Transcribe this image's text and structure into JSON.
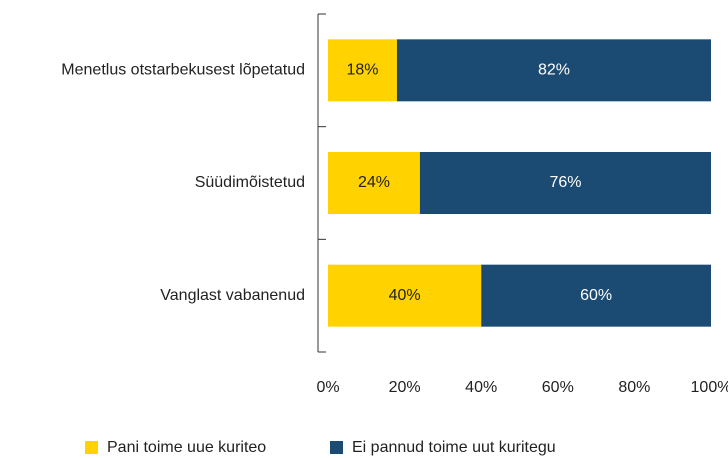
{
  "chart_data": {
    "type": "stacked_barh",
    "categories": [
      "Menetlus otstarbekusest lõpetatud",
      "Süüdimõistetud",
      "Vanglast vabanenud"
    ],
    "series": [
      {
        "name": "Pani toime uue kuriteo",
        "color": "#ffd200",
        "values": [
          18,
          24,
          40
        ],
        "value_labels": [
          "18%",
          "24%",
          "40%"
        ]
      },
      {
        "name": "Ei pannud toime uut kuritegu",
        "color": "#1b4a72",
        "values": [
          82,
          76,
          60
        ],
        "value_labels": [
          "82%",
          "76%",
          "60%"
        ]
      }
    ],
    "xlim": [
      0,
      100
    ],
    "xticks": [
      {
        "value": 0,
        "label": "0%"
      },
      {
        "value": 20,
        "label": "20%"
      },
      {
        "value": 40,
        "label": "40%"
      },
      {
        "value": 60,
        "label": "60%"
      },
      {
        "value": 80,
        "label": "80%"
      },
      {
        "value": 100,
        "label": "100%"
      }
    ],
    "legend": "bottom"
  }
}
